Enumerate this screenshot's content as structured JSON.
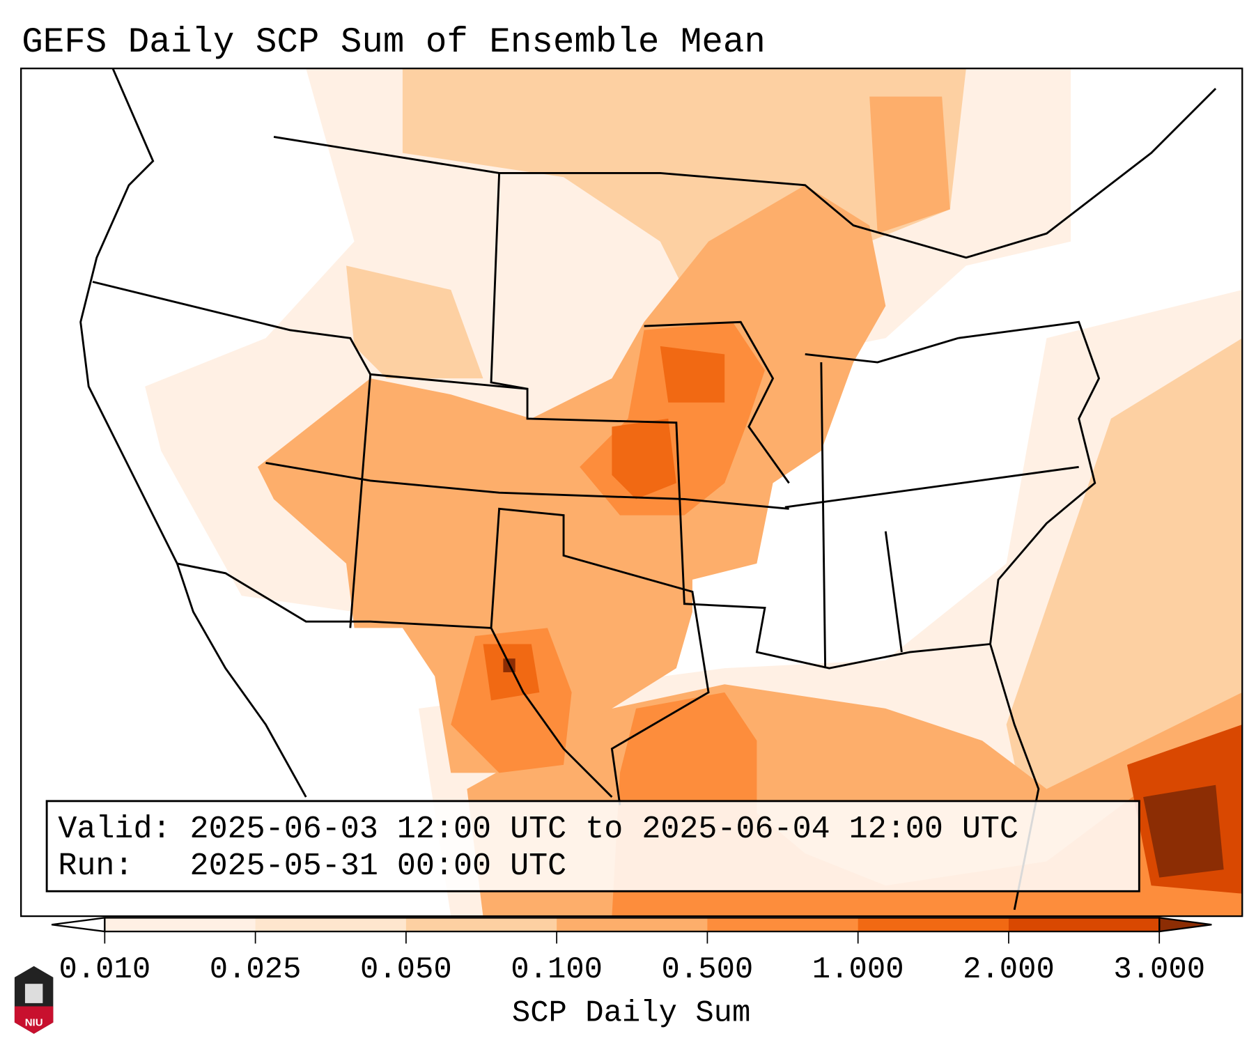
{
  "title": "GEFS Daily SCP Sum of Ensemble Mean",
  "info": {
    "valid_line": "Valid: 2025-06-03 12:00 UTC to 2025-06-04 12:00 UTC",
    "run_line": "Run:   2025-05-31 00:00 UTC"
  },
  "colorbar": {
    "label": "SCP Daily Sum",
    "ticks": [
      "0.010",
      "0.025",
      "0.050",
      "0.100",
      "0.500",
      "1.000",
      "2.000",
      "3.000"
    ],
    "colors": [
      "#fff0e4",
      "#fee6ce",
      "#fdd0a2",
      "#fdae6b",
      "#fd8d3c",
      "#f16913",
      "#d94801"
    ],
    "under_color": "#ffffff",
    "over_color": "#8c2d04"
  },
  "logo": {
    "text": "NIU"
  }
}
